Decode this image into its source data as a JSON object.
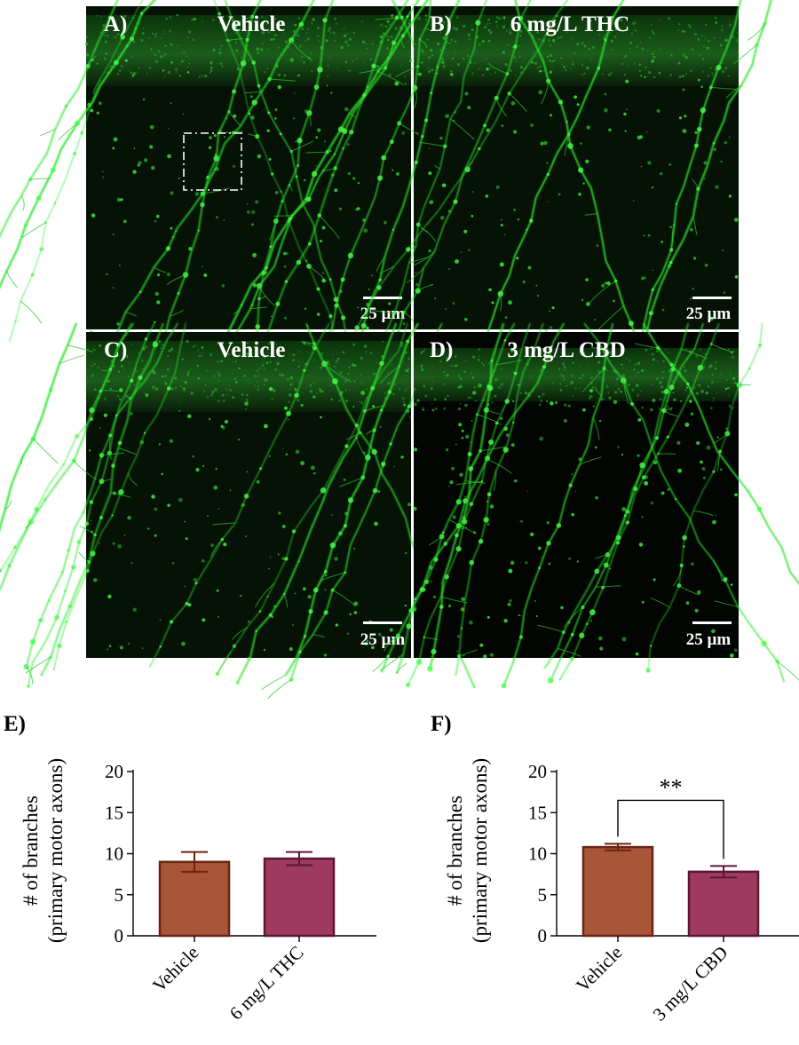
{
  "panels": [
    {
      "letter": "A)",
      "title": "Vehicle",
      "scale_label": "25 µm",
      "has_zoom_box": true
    },
    {
      "letter": "B)",
      "title": "6 mg/L THC",
      "scale_label": "25 µm",
      "has_zoom_box": false
    },
    {
      "letter": "C)",
      "title": "Vehicle",
      "scale_label": "25 µm",
      "has_zoom_box": false
    },
    {
      "letter": "D)",
      "title": "3 mg/L CBD",
      "scale_label": "25 µm",
      "has_zoom_box": false
    }
  ],
  "chart_data": [
    {
      "panel": "E)",
      "type": "bar",
      "categories": [
        "Vehicle",
        "6 mg/L THC"
      ],
      "values": [
        9.0,
        9.4
      ],
      "errors": [
        1.2,
        0.8
      ],
      "colors": [
        "#a9553a",
        "#9e3a5e"
      ],
      "edge_colors": [
        "#6b2412",
        "#5c1634"
      ],
      "ylabel_line1": "# of branches",
      "ylabel_line2": "(primary motor axons)",
      "ylim": [
        0,
        20
      ],
      "yticks": [
        0,
        5,
        10,
        15,
        20
      ],
      "significance": null
    },
    {
      "panel": "F)",
      "type": "bar",
      "categories": [
        "Vehicle",
        "3 mg/L CBD"
      ],
      "values": [
        10.8,
        7.8
      ],
      "errors": [
        0.4,
        0.7
      ],
      "colors": [
        "#a9553a",
        "#9e3a5e"
      ],
      "edge_colors": [
        "#6b2412",
        "#5c1634"
      ],
      "ylabel_line1": "# of branches",
      "ylabel_line2": "(primary motor axons)",
      "ylim": [
        0,
        20
      ],
      "yticks": [
        0,
        5,
        10,
        15,
        20
      ],
      "significance": "**"
    }
  ]
}
